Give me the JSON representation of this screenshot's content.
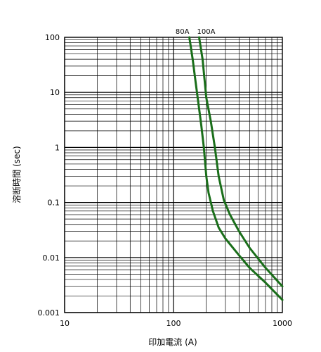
{
  "chart_data": {
    "type": "line",
    "x_scale": "log",
    "y_scale": "log",
    "xlim": [
      10,
      1000
    ],
    "ylim": [
      0.001,
      100
    ],
    "grid": true,
    "line_color": "#1a6e1a",
    "xlabel": "印加電流 (A)",
    "ylabel": "溶断時間 (sec)",
    "x_tick_labels": [
      "10",
      "100",
      "1000"
    ],
    "y_tick_labels": [
      "100",
      "10",
      "1",
      "0.1",
      "0.01",
      "0.001"
    ],
    "series": [
      {
        "name": "80A",
        "points": [
          [
            140,
            100
          ],
          [
            150,
            40
          ],
          [
            160,
            15
          ],
          [
            170,
            6
          ],
          [
            180,
            2.5
          ],
          [
            190,
            1.0
          ],
          [
            200,
            0.3
          ],
          [
            210,
            0.15
          ],
          [
            230,
            0.07
          ],
          [
            260,
            0.035
          ],
          [
            300,
            0.022
          ],
          [
            400,
            0.011
          ],
          [
            500,
            0.0065
          ],
          [
            700,
            0.0035
          ],
          [
            1000,
            0.0017
          ]
        ]
      },
      {
        "name": "100A",
        "points": [
          [
            172,
            100
          ],
          [
            185,
            40
          ],
          [
            200,
            8
          ],
          [
            220,
            3
          ],
          [
            240,
            1.0
          ],
          [
            260,
            0.3
          ],
          [
            290,
            0.11
          ],
          [
            330,
            0.06
          ],
          [
            400,
            0.03
          ],
          [
            500,
            0.015
          ],
          [
            700,
            0.0065
          ],
          [
            1000,
            0.003
          ]
        ]
      }
    ]
  }
}
